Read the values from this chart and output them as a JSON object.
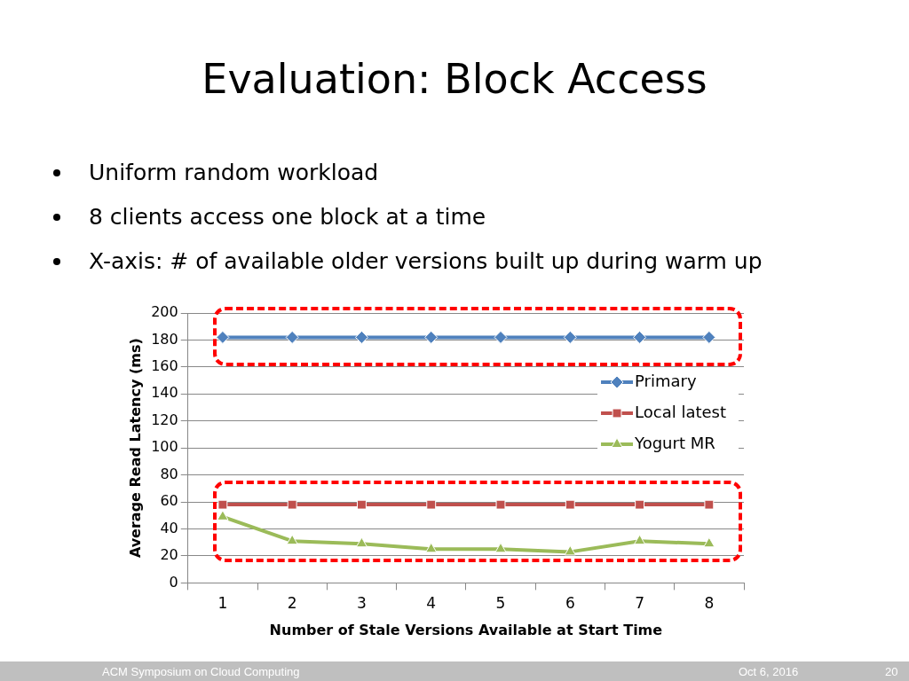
{
  "chart_data": {
    "type": "line",
    "title": "Evaluation: Block Access",
    "subtitle": "Uniform random workload",
    "annotations": [
      "8 clients access one block at a time",
      "X-axis: # of available older versions built up during warm up",
      "ACM Symposium on Cloud Computing",
      "Oct 6, 2016",
      "20"
    ],
    "xlabel": "Number of Stale Versions Available at Start Time",
    "ylabel": "Average Read Latency (ms)",
    "categories": [
      "1",
      "2",
      "3",
      "4",
      "5",
      "6",
      "7",
      "8"
    ],
    "ylim": [
      0,
      200
    ],
    "yticks": [
      0,
      20,
      40,
      60,
      80,
      100,
      120,
      140,
      160,
      180,
      200
    ],
    "grid": "y",
    "legend": "right",
    "series": [
      {
        "name": "Primary",
        "color": "#4f81bd",
        "marker": "diamond",
        "values": [
          182,
          182,
          182,
          182,
          182,
          182,
          182,
          182
        ]
      },
      {
        "name": "Local latest",
        "color": "#c0504d",
        "marker": "square",
        "values": [
          58,
          58,
          58,
          58,
          58,
          58,
          58,
          58
        ]
      },
      {
        "name": "Yogurt MR",
        "color": "#9bbb59",
        "marker": "triangle",
        "values": [
          49,
          31,
          29,
          25,
          25,
          23,
          31,
          29
        ]
      }
    ]
  }
}
